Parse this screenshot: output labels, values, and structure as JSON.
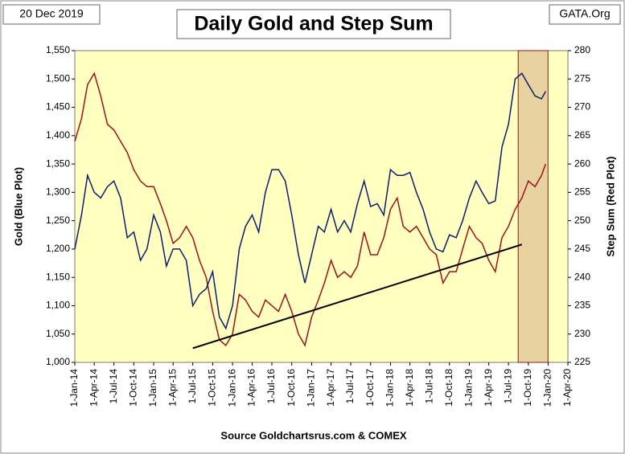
{
  "chart_data": {
    "type": "line",
    "title": "Daily Gold and Step Sum",
    "date_label": "20 Dec 2019",
    "brand": "GATA.Org",
    "source": "Source Goldchartsrus.com & COMEX",
    "y_label": "Gold   (Blue Plot)",
    "y2_label": "Step Sum   (Red Plot)",
    "xlim": [
      "2014-01-01",
      "2020-04-01"
    ],
    "xticks": [
      {
        "value": "2014-01-01",
        "label": "1-Jan-14"
      },
      {
        "value": "2014-04-01",
        "label": "1-Apr-14"
      },
      {
        "value": "2014-07-01",
        "label": "1-Jul-14"
      },
      {
        "value": "2014-10-01",
        "label": "1-Oct-14"
      },
      {
        "value": "2015-01-01",
        "label": "1-Jan-15"
      },
      {
        "value": "2015-04-01",
        "label": "1-Apr-15"
      },
      {
        "value": "2015-07-01",
        "label": "1-Jul-15"
      },
      {
        "value": "2015-10-01",
        "label": "1-Oct-15"
      },
      {
        "value": "2016-01-01",
        "label": "1-Jan-16"
      },
      {
        "value": "2016-04-01",
        "label": "1-Apr-16"
      },
      {
        "value": "2016-07-01",
        "label": "1-Jul-16"
      },
      {
        "value": "2016-10-01",
        "label": "1-Oct-16"
      },
      {
        "value": "2017-01-01",
        "label": "1-Jan-17"
      },
      {
        "value": "2017-04-01",
        "label": "1-Apr-17"
      },
      {
        "value": "2017-07-01",
        "label": "1-Jul-17"
      },
      {
        "value": "2017-10-01",
        "label": "1-Oct-17"
      },
      {
        "value": "2018-01-01",
        "label": "1-Jan-18"
      },
      {
        "value": "2018-04-01",
        "label": "1-Apr-18"
      },
      {
        "value": "2018-07-01",
        "label": "1-Jul-18"
      },
      {
        "value": "2018-10-01",
        "label": "1-Oct-18"
      },
      {
        "value": "2019-01-01",
        "label": "1-Jan-19"
      },
      {
        "value": "2019-04-01",
        "label": "1-Apr-19"
      },
      {
        "value": "2019-07-01",
        "label": "1-Jul-19"
      },
      {
        "value": "2019-10-01",
        "label": "1-Oct-19"
      },
      {
        "value": "2020-01-01",
        "label": "1-Jan-20"
      },
      {
        "value": "2020-04-01",
        "label": "1-Apr-20"
      }
    ],
    "ylim": [
      1000,
      1550
    ],
    "yticks": [
      {
        "value": 1000,
        "label": "1,000"
      },
      {
        "value": 1050,
        "label": "1,050"
      },
      {
        "value": 1100,
        "label": "1,100"
      },
      {
        "value": 1150,
        "label": "1,150"
      },
      {
        "value": 1200,
        "label": "1,200"
      },
      {
        "value": 1250,
        "label": "1,250"
      },
      {
        "value": 1300,
        "label": "1,300"
      },
      {
        "value": 1350,
        "label": "1,350"
      },
      {
        "value": 1400,
        "label": "1,400"
      },
      {
        "value": 1450,
        "label": "1,450"
      },
      {
        "value": 1500,
        "label": "1,500"
      },
      {
        "value": 1550,
        "label": "1,550"
      }
    ],
    "y2lim": [
      225,
      280
    ],
    "y2ticks": [
      225,
      230,
      235,
      240,
      245,
      250,
      255,
      260,
      265,
      270,
      275,
      280
    ],
    "x": [
      "2014-01-01",
      "2014-02-01",
      "2014-03-01",
      "2014-04-01",
      "2014-05-01",
      "2014-06-01",
      "2014-07-01",
      "2014-08-01",
      "2014-09-01",
      "2014-10-01",
      "2014-11-01",
      "2014-12-01",
      "2015-01-01",
      "2015-02-01",
      "2015-03-01",
      "2015-04-01",
      "2015-05-01",
      "2015-06-01",
      "2015-07-01",
      "2015-08-01",
      "2015-09-01",
      "2015-10-01",
      "2015-11-01",
      "2015-12-01",
      "2016-01-01",
      "2016-02-01",
      "2016-03-01",
      "2016-04-01",
      "2016-05-01",
      "2016-06-01",
      "2016-07-01",
      "2016-08-01",
      "2016-09-01",
      "2016-10-01",
      "2016-11-01",
      "2016-12-01",
      "2017-01-01",
      "2017-02-01",
      "2017-03-01",
      "2017-04-01",
      "2017-05-01",
      "2017-06-01",
      "2017-07-01",
      "2017-08-01",
      "2017-09-01",
      "2017-10-01",
      "2017-11-01",
      "2017-12-01",
      "2018-01-01",
      "2018-02-01",
      "2018-03-01",
      "2018-04-01",
      "2018-05-01",
      "2018-06-01",
      "2018-07-01",
      "2018-08-01",
      "2018-09-01",
      "2018-10-01",
      "2018-11-01",
      "2018-12-01",
      "2019-01-01",
      "2019-02-01",
      "2019-03-01",
      "2019-04-01",
      "2019-05-01",
      "2019-06-01",
      "2019-07-01",
      "2019-08-01",
      "2019-09-01",
      "2019-10-01",
      "2019-11-01",
      "2019-12-01",
      "2019-12-20"
    ],
    "series": [
      {
        "name": "Gold",
        "color": "#0a1e6e",
        "values": [
          1200,
          1260,
          1330,
          1300,
          1290,
          1310,
          1320,
          1290,
          1220,
          1230,
          1180,
          1200,
          1260,
          1230,
          1170,
          1200,
          1200,
          1180,
          1100,
          1120,
          1130,
          1160,
          1080,
          1060,
          1100,
          1200,
          1240,
          1260,
          1230,
          1300,
          1340,
          1340,
          1320,
          1260,
          1190,
          1140,
          1190,
          1240,
          1230,
          1270,
          1230,
          1250,
          1230,
          1280,
          1320,
          1275,
          1280,
          1260,
          1340,
          1330,
          1330,
          1335,
          1300,
          1270,
          1230,
          1200,
          1195,
          1225,
          1220,
          1250,
          1290,
          1320,
          1300,
          1280,
          1285,
          1380,
          1420,
          1500,
          1510,
          1490,
          1470,
          1465,
          1478
        ]
      },
      {
        "name": "Step Sum",
        "color": "#a01020",
        "axis": "y2",
        "values": [
          264,
          268,
          274,
          276,
          272,
          267,
          266,
          264,
          262,
          259,
          257,
          256,
          256,
          253,
          250,
          246,
          247,
          249,
          247,
          243,
          240,
          234,
          229,
          228,
          230,
          237,
          236,
          234,
          233,
          236,
          235,
          234,
          237,
          234,
          230,
          228,
          233,
          236,
          239,
          243,
          240,
          241,
          240,
          242,
          248,
          244,
          244,
          247,
          252,
          254,
          249,
          248,
          249,
          247,
          245,
          244,
          239,
          241,
          241,
          245,
          249,
          247,
          246,
          243,
          241,
          247,
          249,
          252,
          254,
          257,
          256,
          258,
          260
        ]
      }
    ],
    "trend_line": {
      "x": [
        "2015-07-01",
        "2019-09-01"
      ],
      "y": [
        1025,
        1208
      ],
      "color": "#000000"
    },
    "highlight": {
      "x": [
        "2019-08-15",
        "2019-12-31"
      ],
      "color": "#d9b48a"
    }
  }
}
